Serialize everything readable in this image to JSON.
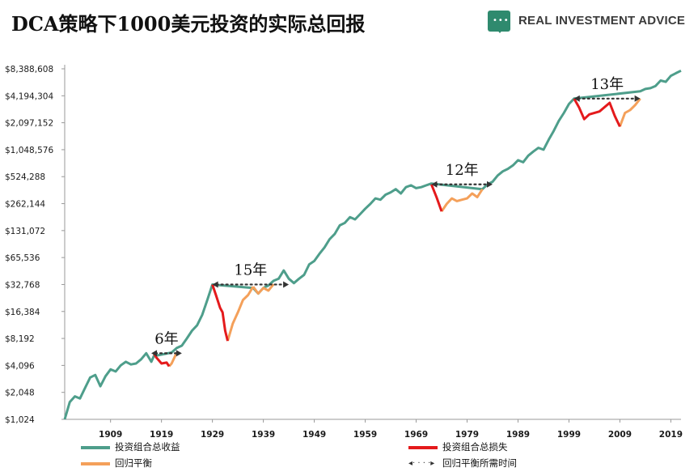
{
  "title": "DCA策略下1000美元投资的实际总回报",
  "brand": {
    "name": "REAL INVESTMENT ADVICE",
    "logo_icon": "speech-bubble-icon"
  },
  "colors": {
    "total": "#4e9e8b",
    "loss": "#e41a1c",
    "recovery": "#f4a05a",
    "arrow": "#333333",
    "axis": "#999999"
  },
  "chart_data": {
    "type": "line",
    "title": "DCA策略下1000美元投资的实际总回报",
    "y_scale": "log2",
    "ylim": [
      1024,
      8388608
    ],
    "xlim": [
      1900,
      2021
    ],
    "y_ticks": [
      1024,
      2048,
      4096,
      8192,
      16384,
      32768,
      65536,
      131072,
      262144,
      524288,
      1048576,
      2097152,
      4194304,
      8388608
    ],
    "y_tick_labels": [
      "$1,024",
      "$2,048",
      "$4,096",
      "$8,192",
      "$16,384",
      "$32,768",
      "$65,536",
      "$131,072",
      "$262,144",
      "$524,288",
      "$1,048,576",
      "$2,097,152",
      "$4,194,304",
      "$8,388,608"
    ],
    "x_ticks": [
      1909,
      1919,
      1929,
      1939,
      1949,
      1959,
      1969,
      1979,
      1989,
      1999,
      2009,
      2019
    ],
    "x_tick_labels": [
      "1909",
      "1919",
      "1929",
      "1939",
      "1949",
      "1959",
      "1969",
      "1979",
      "1989",
      "1999",
      "2009",
      "2019"
    ],
    "series": [
      {
        "name": "投资组合总收益",
        "color": "#4e9e8b",
        "points": [
          [
            1900,
            1024
          ],
          [
            1901,
            1600
          ],
          [
            1902,
            1850
          ],
          [
            1903,
            1750
          ],
          [
            1904,
            2300
          ],
          [
            1905,
            3000
          ],
          [
            1906,
            3200
          ],
          [
            1907,
            2400
          ],
          [
            1908,
            3100
          ],
          [
            1909,
            3700
          ],
          [
            1910,
            3500
          ],
          [
            1911,
            4100
          ],
          [
            1912,
            4500
          ],
          [
            1913,
            4200
          ],
          [
            1914,
            4300
          ],
          [
            1915,
            4800
          ],
          [
            1916,
            5600
          ],
          [
            1917,
            4500
          ],
          [
            1917.5,
            5200
          ],
          [
            1921,
            5700
          ],
          [
            1922,
            6400
          ],
          [
            1923,
            6800
          ],
          [
            1924,
            8200
          ],
          [
            1925,
            10000
          ],
          [
            1926,
            11500
          ],
          [
            1927,
            15000
          ],
          [
            1928,
            22000
          ],
          [
            1929,
            32768
          ],
          [
            1937,
            30000
          ],
          [
            1938,
            26000
          ],
          [
            1939,
            30000
          ],
          [
            1940,
            32000
          ],
          [
            1941,
            36000
          ],
          [
            1942,
            38000
          ],
          [
            1943,
            47000
          ],
          [
            1944,
            38000
          ],
          [
            1945,
            34000
          ],
          [
            1946,
            38000
          ],
          [
            1947,
            42000
          ],
          [
            1948,
            55000
          ],
          [
            1949,
            60000
          ],
          [
            1950,
            72000
          ],
          [
            1951,
            85000
          ],
          [
            1952,
            105000
          ],
          [
            1953,
            120000
          ],
          [
            1954,
            150000
          ],
          [
            1955,
            160000
          ],
          [
            1956,
            185000
          ],
          [
            1957,
            175000
          ],
          [
            1958,
            200000
          ],
          [
            1959,
            230000
          ],
          [
            1960,
            260000
          ],
          [
            1961,
            300000
          ],
          [
            1962,
            290000
          ],
          [
            1963,
            330000
          ],
          [
            1964,
            350000
          ],
          [
            1965,
            380000
          ],
          [
            1966,
            340000
          ],
          [
            1967,
            400000
          ],
          [
            1968,
            420000
          ],
          [
            1969,
            390000
          ],
          [
            1970,
            400000
          ],
          [
            1971,
            420000
          ],
          [
            1972,
            440000
          ],
          [
            1982,
            380000
          ],
          [
            1983,
            430000
          ],
          [
            1984,
            460000
          ],
          [
            1985,
            540000
          ],
          [
            1986,
            600000
          ],
          [
            1987,
            640000
          ],
          [
            1988,
            700000
          ],
          [
            1989,
            800000
          ],
          [
            1990,
            760000
          ],
          [
            1991,
            900000
          ],
          [
            1992,
            1000000
          ],
          [
            1993,
            1100000
          ],
          [
            1994,
            1050000
          ],
          [
            1995,
            1350000
          ],
          [
            1996,
            1700000
          ],
          [
            1997,
            2200000
          ],
          [
            1998,
            2700000
          ],
          [
            1999,
            3400000
          ],
          [
            2000,
            3900000
          ],
          [
            2013,
            4700000
          ],
          [
            2014,
            5000000
          ],
          [
            2015,
            5100000
          ],
          [
            2016,
            5400000
          ],
          [
            2017,
            6200000
          ],
          [
            2018,
            6000000
          ],
          [
            2019,
            7000000
          ],
          [
            2020,
            7500000
          ],
          [
            2021,
            8000000
          ]
        ]
      },
      {
        "name": "投资组合总损失",
        "color": "#e41a1c",
        "segments": [
          [
            [
              1917.5,
              5600
            ],
            [
              1918,
              5000
            ],
            [
              1919,
              4300
            ],
            [
              1920,
              4400
            ],
            [
              1920.5,
              4000
            ]
          ],
          [
            [
              1929,
              32768
            ],
            [
              1929.7,
              25000
            ],
            [
              1930.5,
              18000
            ],
            [
              1931,
              16000
            ],
            [
              1931.5,
              10000
            ],
            [
              1932,
              7700
            ]
          ],
          [
            [
              1972,
              430000
            ],
            [
              1973,
              310000
            ],
            [
              1974,
              215000
            ]
          ],
          [
            [
              2000,
              3900000
            ],
            [
              2001,
              3100000
            ],
            [
              2002,
              2300000
            ],
            [
              2003,
              2600000
            ],
            [
              2005,
              2800000
            ],
            [
              2007,
              3500000
            ],
            [
              2008,
              2500000
            ],
            [
              2009,
              1900000
            ]
          ]
        ]
      },
      {
        "name": "回归平衡",
        "color": "#f4a05a",
        "segments": [
          [
            [
              1920.5,
              4000
            ],
            [
              1921,
              4300
            ],
            [
              1922,
              5700
            ]
          ],
          [
            [
              1932,
              7700
            ],
            [
              1933,
              12000
            ],
            [
              1934,
              16000
            ],
            [
              1935,
              22000
            ],
            [
              1936,
              25000
            ],
            [
              1937,
              31000
            ]
          ],
          [
            [
              1937,
              31000
            ],
            [
              1938,
              26000
            ],
            [
              1939,
              30000
            ],
            [
              1940,
              28000
            ],
            [
              1941,
              33000
            ]
          ],
          [
            [
              1974,
              215000
            ],
            [
              1975,
              260000
            ],
            [
              1976,
              300000
            ],
            [
              1977,
              280000
            ],
            [
              1978,
              290000
            ],
            [
              1979,
              300000
            ],
            [
              1980,
              340000
            ],
            [
              1981,
              310000
            ],
            [
              1982,
              380000
            ]
          ],
          [
            [
              2009,
              1900000
            ],
            [
              2010,
              2700000
            ],
            [
              2011,
              2900000
            ],
            [
              2012,
              3300000
            ],
            [
              2013,
              3900000
            ]
          ]
        ]
      }
    ],
    "recovery_periods": [
      {
        "label": "6年",
        "start": 1917,
        "end": 1923,
        "value": 5600
      },
      {
        "label": "15年",
        "start": 1929,
        "end": 1944,
        "value": 32768
      },
      {
        "label": "12年",
        "start": 1972,
        "end": 1984,
        "value": 430000
      },
      {
        "label": "13年",
        "start": 2000,
        "end": 2013,
        "value": 3900000
      }
    ],
    "legend": {
      "position": "bottom",
      "items": [
        {
          "label": "投资组合总收益",
          "kind": "line",
          "color": "#4e9e8b"
        },
        {
          "label": "回归平衡",
          "kind": "line",
          "color": "#f4a05a"
        },
        {
          "label": "投资组合总损失",
          "kind": "line",
          "color": "#e41a1c"
        },
        {
          "label": "回归平衡所需时间",
          "kind": "arrow",
          "color": "#333333"
        }
      ]
    },
    "grid": false
  }
}
